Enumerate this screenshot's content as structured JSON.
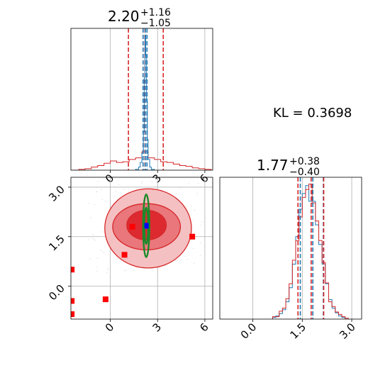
{
  "chart_data": [
    {
      "type": "histogram",
      "panel": "top-left",
      "title": {
        "value": "2.20",
        "plus": "+1.16",
        "minus": "−1.05"
      },
      "xlim": [
        -2.5,
        6.5
      ],
      "xticks": [
        0,
        3,
        6
      ],
      "grid": true,
      "series": [
        {
          "color": "#d62728",
          "bin_edges": [
            -2.4,
            -2.0,
            -1.6,
            -1.2,
            -0.8,
            -0.4,
            0.0,
            0.4,
            0.8,
            1.2,
            1.6,
            2.0,
            2.4,
            2.8,
            3.2,
            3.6,
            4.0,
            4.4,
            4.8,
            5.2,
            5.6,
            6.0,
            6.4
          ],
          "counts": [
            0,
            1,
            2,
            4,
            6,
            9,
            12,
            10,
            11,
            14,
            16,
            24,
            16,
            14,
            11,
            10,
            8,
            6,
            5,
            3,
            2,
            1
          ],
          "quantile_lines": [
            1.15,
            2.2,
            3.36
          ]
        },
        {
          "color": "#1f77b4",
          "bin_edges": [
            1.6,
            1.8,
            1.9,
            2.0,
            2.1,
            2.15,
            2.2,
            2.25,
            2.3,
            2.35,
            2.4,
            2.5,
            2.6,
            2.8
          ],
          "counts": [
            1,
            4,
            10,
            22,
            50,
            120,
            176,
            150,
            90,
            40,
            14,
            4,
            1
          ],
          "quantile_lines": [
            2.08,
            2.22,
            2.33
          ]
        }
      ]
    },
    {
      "type": "scatter-contour",
      "panel": "bottom-left",
      "xlim": [
        -2.5,
        6.5
      ],
      "ylim": [
        -1.0,
        3.3
      ],
      "xticks": [
        0,
        3,
        6
      ],
      "yticks": [
        0.0,
        1.5,
        3.0
      ],
      "grid": true,
      "red_contours": [
        {
          "cx": 2.3,
          "cy": 1.85,
          "rx": 1.25,
          "ry": 0.45,
          "fill": "#dd2a31"
        },
        {
          "cx": 2.3,
          "cy": 1.8,
          "rx": 2.15,
          "ry": 0.7,
          "fill": "#e9777c"
        },
        {
          "cx": 2.4,
          "cy": 1.75,
          "rx": 2.75,
          "ry": 1.2,
          "fill": "#f5c0c2"
        }
      ],
      "green_contours": [
        {
          "cx": 2.28,
          "cy": 1.83,
          "rx": 0.2,
          "ry": 0.95
        },
        {
          "cx": 2.28,
          "cy": 1.83,
          "rx": 0.12,
          "ry": 0.55
        }
      ],
      "red_squares": [
        [
          1.4,
          1.8
        ],
        [
          0.9,
          0.95
        ],
        [
          5.2,
          1.5
        ],
        [
          -0.3,
          -0.4
        ],
        [
          -2.45,
          0.5
        ],
        [
          -2.45,
          -0.45
        ],
        [
          -2.45,
          -0.85
        ]
      ],
      "blue_point": [
        2.3,
        1.83
      ]
    },
    {
      "type": "histogram",
      "panel": "bottom-right",
      "title": {
        "value": "1.77",
        "plus": "+0.38",
        "minus": "−0.40"
      },
      "xlim": [
        -1.0,
        3.3
      ],
      "xticks": [
        0.0,
        1.5,
        3.0
      ],
      "grid": true,
      "series": [
        {
          "color": "#1f77b4",
          "bin_edges": [
            0.6,
            0.7,
            0.8,
            0.9,
            1.0,
            1.1,
            1.2,
            1.3,
            1.4,
            1.5,
            1.6,
            1.7,
            1.8,
            1.9,
            2.0,
            2.1,
            2.2,
            2.3,
            2.4,
            2.5,
            2.6,
            2.7,
            2.8
          ],
          "counts": [
            2,
            4,
            7,
            12,
            22,
            40,
            70,
            105,
            140,
            160,
            170,
            150,
            150,
            120,
            95,
            70,
            45,
            25,
            14,
            8,
            4,
            2
          ],
          "quantile_lines": [
            1.44,
            1.82,
            2.14
          ]
        },
        {
          "color": "#d62728",
          "bin_edges": [
            0.6,
            0.7,
            0.8,
            0.9,
            1.0,
            1.1,
            1.2,
            1.3,
            1.4,
            1.5,
            1.6,
            1.7,
            1.8,
            1.9,
            2.0,
            2.1,
            2.2,
            2.3,
            2.4,
            2.5,
            2.6,
            2.7,
            2.8,
            2.9
          ],
          "counts": [
            3,
            3,
            10,
            14,
            26,
            45,
            75,
            100,
            130,
            155,
            165,
            172,
            148,
            125,
            100,
            72,
            46,
            22,
            16,
            9,
            6,
            3,
            1
          ],
          "quantile_lines": [
            1.37,
            1.77,
            2.15
          ]
        }
      ]
    }
  ],
  "kl": {
    "text": "KL = 0.3698"
  }
}
